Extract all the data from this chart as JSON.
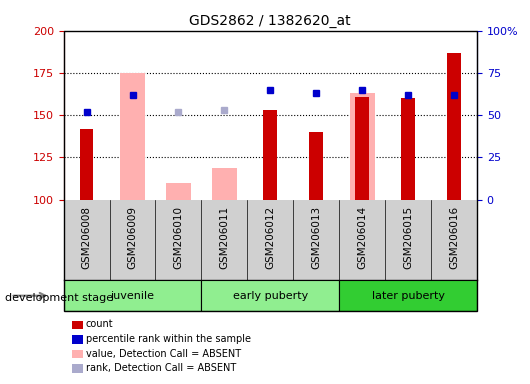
{
  "title": "GDS2862 / 1382620_at",
  "samples": [
    "GSM206008",
    "GSM206009",
    "GSM206010",
    "GSM206011",
    "GSM206012",
    "GSM206013",
    "GSM206014",
    "GSM206015",
    "GSM206016"
  ],
  "count_values": [
    142,
    null,
    null,
    null,
    153,
    140,
    161,
    160,
    187
  ],
  "count_color": "#cc0000",
  "absent_value_values": [
    null,
    175,
    110,
    119,
    null,
    null,
    163,
    null,
    null
  ],
  "absent_value_color": "#ffb0b0",
  "percentile_rank_values": [
    52,
    62,
    null,
    null,
    65,
    63,
    65,
    62,
    62
  ],
  "percentile_rank_color": "#0000cc",
  "absent_rank_values": [
    null,
    null,
    52,
    53,
    null,
    null,
    null,
    null,
    null
  ],
  "absent_rank_color": "#aaaacc",
  "ylim_left": [
    100,
    200
  ],
  "ylim_right": [
    0,
    100
  ],
  "yticks_left": [
    100,
    125,
    150,
    175,
    200
  ],
  "yticks_right": [
    0,
    25,
    50,
    75,
    100
  ],
  "yticklabels_right": [
    "0",
    "25",
    "50",
    "75",
    "100%"
  ],
  "group_spans": [
    {
      "start": 0,
      "end": 2,
      "label": "juvenile",
      "color": "#90ee90"
    },
    {
      "start": 3,
      "end": 5,
      "label": "early puberty",
      "color": "#90ee90"
    },
    {
      "start": 6,
      "end": 8,
      "label": "later puberty",
      "color": "#32cd32"
    }
  ],
  "dev_stage_label": "development stage",
  "absent_bar_width": 0.55,
  "count_bar_width": 0.3,
  "grid_dotted_at": [
    125,
    150,
    175
  ],
  "sample_area_color": "#d0d0d0",
  "legend": [
    {
      "color": "#cc0000",
      "label": "count"
    },
    {
      "color": "#0000cc",
      "label": "percentile rank within the sample"
    },
    {
      "color": "#ffb0b0",
      "label": "value, Detection Call = ABSENT"
    },
    {
      "color": "#aaaacc",
      "label": "rank, Detection Call = ABSENT"
    }
  ]
}
